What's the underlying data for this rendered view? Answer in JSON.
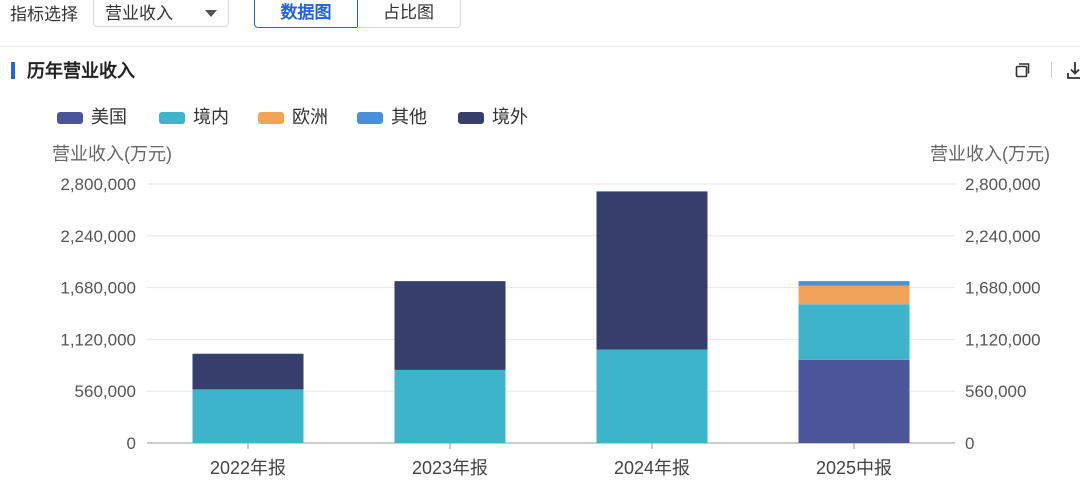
{
  "toolbar": {
    "indicator_label": "指标选择",
    "indicator_value": "营业收入",
    "view_chart_label": "数据图",
    "view_ratio_label": "占比图"
  },
  "section": {
    "title": "历年营业收入"
  },
  "icons": {
    "copy": "copy-icon",
    "download": "download-icon",
    "dropdown": "chevron-down-icon"
  },
  "colors": {
    "accent": "#1f64e6"
  },
  "chart_data": {
    "type": "bar",
    "stacked": true,
    "categories": [
      "2022年报",
      "2023年报",
      "2024年报",
      "2025中报"
    ],
    "series": [
      {
        "name": "美国",
        "color": "#4a5699",
        "values": [
          0,
          0,
          0,
          900000
        ]
      },
      {
        "name": "境内",
        "color": "#3eb4cb",
        "values": [
          580000,
          790000,
          1010000,
          600000
        ]
      },
      {
        "name": "欧洲",
        "color": "#f2a35a",
        "values": [
          0,
          0,
          0,
          200000
        ]
      },
      {
        "name": "其他",
        "color": "#4a90d9",
        "values": [
          0,
          0,
          0,
          50000
        ]
      },
      {
        "name": "境外",
        "color": "#363f6b",
        "values": [
          385000,
          960000,
          1710000,
          0
        ]
      }
    ],
    "ylabel_left": "营业收入(万元)",
    "ylabel_right": "营业收入(万元)",
    "ylim": [
      0,
      2800000
    ],
    "yticks": [
      0,
      560000,
      1120000,
      1680000,
      2240000,
      2800000
    ],
    "ytick_labels": [
      "0",
      "560,000",
      "1,120,000",
      "1,680,000",
      "2,240,000",
      "2,800,000"
    ],
    "grid": true,
    "legend_position": "top-left"
  }
}
